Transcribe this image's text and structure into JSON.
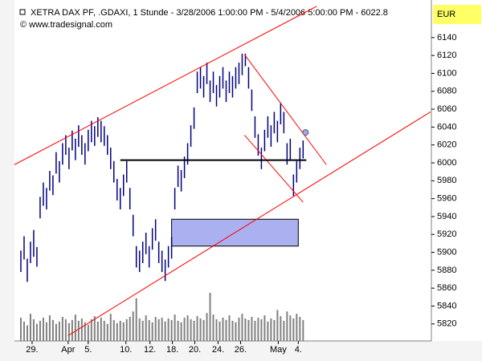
{
  "chart_data": {
    "type": "hlbar",
    "title": "XETRA DAX PF",
    "subtitle": ", .GDAXI, 1 Stunde - 3/28/2006 1:00:00 PM - 5/4/2006 5:00:00 PM - 6022.8",
    "copyright": "© www.tradesignal.com",
    "y_axis_label": "EUR",
    "color": "#000080",
    "volume_color": "#808080",
    "series": [
      {
        "high": [
          5902,
          5918,
          5893,
          5912,
          5925,
          5906,
          5962,
          5978,
          5972,
          5991,
          5986,
          6012,
          6002,
          6022,
          6031,
          6017,
          6036,
          6027,
          6042,
          6031,
          6022,
          6037,
          6047,
          6041,
          6051,
          6047,
          6041,
          6031,
          6017,
          6002,
          5982,
          5972,
          5987,
          6002,
          5972,
          5942,
          5907,
          5902,
          5912,
          5922,
          5907,
          5927,
          5937,
          5912,
          5902,
          5892,
          5907,
          5917,
          5972,
          5997,
          5992,
          6007,
          6022,
          6042,
          6062,
          6102,
          6107,
          6097,
          6112,
          6092,
          6102,
          6087,
          6097,
          6107,
          6092,
          6102,
          6097,
          6107,
          6112,
          6122,
          6122,
          6107,
          6082,
          6052,
          6032,
          6017,
          6037,
          6052,
          6042,
          6057,
          6047,
          6067,
          6057,
          6022,
          6027,
          5987,
          6002,
          6017,
          6025
        ],
        "low": [
          5878,
          5892,
          5867,
          5888,
          5895,
          5884,
          5938,
          5952,
          5948,
          5969,
          5964,
          5988,
          5978,
          5998,
          6009,
          5993,
          6014,
          6003,
          6018,
          6009,
          5998,
          6013,
          6023,
          6019,
          6029,
          6023,
          6019,
          6009,
          5993,
          5978,
          5958,
          5948,
          5963,
          5978,
          5948,
          5918,
          5883,
          5878,
          5888,
          5898,
          5883,
          5903,
          5913,
          5888,
          5878,
          5868,
          5883,
          5893,
          5948,
          5973,
          5968,
          5983,
          5998,
          6018,
          6038,
          6078,
          6083,
          6073,
          6088,
          6068,
          6078,
          6063,
          6073,
          6083,
          6068,
          6078,
          6073,
          6083,
          6088,
          6098,
          6108,
          6083,
          6058,
          6028,
          6008,
          5993,
          6013,
          6028,
          6018,
          6033,
          6023,
          6043,
          6033,
          5998,
          6003,
          5963,
          5978,
          5993,
          6005
        ]
      }
    ],
    "volume": [
      30,
      25,
      20,
      35,
      28,
      22,
      26,
      30,
      24,
      33,
      27,
      22,
      25,
      31,
      28,
      23,
      27,
      34,
      26,
      29,
      24,
      21,
      28,
      32,
      25,
      30,
      26,
      22,
      35,
      27,
      23,
      26,
      24,
      28,
      31,
      38,
      55,
      29,
      26,
      33,
      27,
      24,
      31,
      28,
      30,
      25,
      29,
      27,
      34,
      26,
      24,
      30,
      33,
      28,
      26,
      32,
      29,
      27,
      36,
      62,
      34,
      28,
      25,
      30,
      27,
      33,
      26,
      24,
      30,
      35,
      29,
      27,
      31,
      26,
      30,
      28,
      33,
      25,
      29,
      27,
      40,
      32,
      26,
      38,
      33,
      29,
      35,
      31,
      27
    ],
    "xlim": [
      -2,
      128
    ],
    "xticks": [
      {
        "value": 3.5,
        "label": "29."
      },
      {
        "value": 14.75,
        "label": "Apr"
      },
      {
        "value": 21,
        "label": "5."
      },
      {
        "value": 32.75,
        "label": "10."
      },
      {
        "value": 40.25,
        "label": "12."
      },
      {
        "value": 47.25,
        "label": "18."
      },
      {
        "value": 54.25,
        "label": "20."
      },
      {
        "value": 61.5,
        "label": "24."
      },
      {
        "value": 68.5,
        "label": "26."
      },
      {
        "value": 80.25,
        "label": "May"
      },
      {
        "value": 86.5,
        "label": "4."
      }
    ],
    "ylim": [
      5801,
      6182
    ],
    "yticks": [
      5820,
      5840,
      5860,
      5880,
      5900,
      5920,
      5940,
      5960,
      5980,
      6000,
      6020,
      6040,
      6060,
      6080,
      6100,
      6120,
      6140
    ],
    "lines": [
      {
        "color": "#ff0000",
        "x": [
          -2,
          92.25
        ],
        "y": [
          5998,
          6175
        ]
      },
      {
        "color": "#ff0000",
        "x": [
          14.75,
          127.75
        ],
        "y": [
          5807,
          6057
        ]
      },
      {
        "color": "#ff0000",
        "x": [
          69.75,
          95.25
        ],
        "y": [
          6121,
          5998
        ]
      },
      {
        "color": "#ff0000",
        "x": [
          69.75,
          88
        ],
        "y": [
          6031,
          5956
        ]
      },
      {
        "color": "#000000",
        "x": [
          31,
          89
        ],
        "y": [
          6003,
          6003
        ]
      }
    ],
    "box": {
      "color": "#aab0f0",
      "x": [
        47,
        86.5
      ],
      "y": [
        5937,
        5907
      ]
    },
    "marker": {
      "color": "#a0a8e8",
      "x": 88.75,
      "y": 6034
    }
  }
}
